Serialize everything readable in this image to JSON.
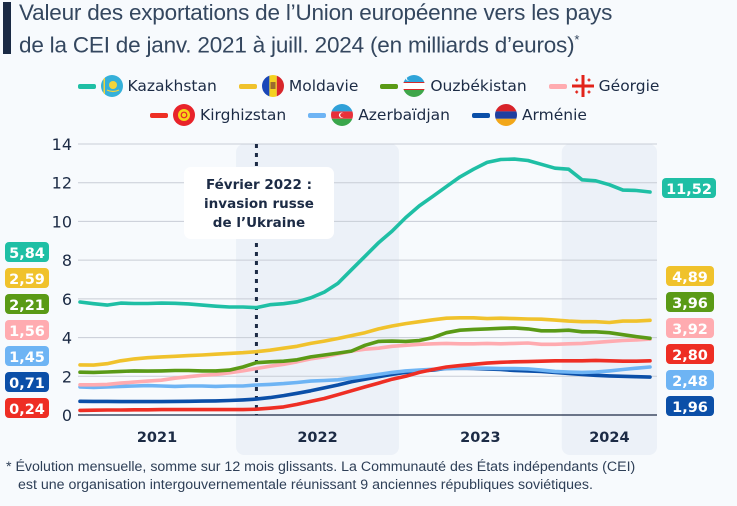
{
  "header": {
    "title_line1": "Valeur des exportations de l’Union européenne vers les pays",
    "title_line2": "de la CEI de janv. 2021 à juill. 2024 (en milliards d’euros)",
    "title_mark": "*"
  },
  "footnote": {
    "line1": "* Évolution mensuelle, somme sur 12 mois glissants. La Communauté des États indépendants (CEI)",
    "line2": "est une organisation intergouvernementale réunissant 9 anciennes républiques soviétiques."
  },
  "chart_data": {
    "type": "line",
    "title": "Valeur des exportations de l’Union européenne vers les pays de la CEI de janv. 2021 à juill. 2024 (en milliards d’euros)",
    "xlabel": "",
    "ylabel": "",
    "x_start": "2021-01",
    "x_end": "2024-07",
    "x_tick_labels": [
      "2021",
      "2022",
      "2023",
      "2024"
    ],
    "y_ticks": [
      0,
      2,
      4,
      6,
      8,
      10,
      12,
      14
    ],
    "ylim": [
      0,
      14
    ],
    "grid": true,
    "shaded_years": [
      "2022",
      "2024"
    ],
    "annotation": {
      "date": "2022-02",
      "text_lines": [
        "Février 2022 :",
        "invasion russe",
        "de l’Ukraine"
      ]
    },
    "legend_placement": "top",
    "series": [
      {
        "name": "Kazakhstan",
        "color": "#1fbfa5",
        "flag": "kazakhstan-flag-icon",
        "start_label": "5,84",
        "end_label": "11,52",
        "values": [
          5.84,
          5.75,
          5.68,
          5.78,
          5.76,
          5.76,
          5.78,
          5.77,
          5.74,
          5.68,
          5.62,
          5.58,
          5.58,
          5.55,
          5.7,
          5.75,
          5.85,
          6.05,
          6.35,
          6.8,
          7.5,
          8.2,
          8.9,
          9.5,
          10.2,
          10.8,
          11.3,
          11.8,
          12.3,
          12.7,
          13.05,
          13.2,
          13.22,
          13.15,
          12.95,
          12.75,
          12.7,
          12.15,
          12.1,
          11.9,
          11.62,
          11.6,
          11.52
        ]
      },
      {
        "name": "Moldavie",
        "color": "#f0c22c",
        "flag": "moldova-flag-icon",
        "start_label": "2,59",
        "end_label": "4,89",
        "values": [
          2.59,
          2.58,
          2.65,
          2.8,
          2.9,
          2.96,
          3.0,
          3.03,
          3.07,
          3.1,
          3.14,
          3.18,
          3.22,
          3.27,
          3.35,
          3.45,
          3.55,
          3.7,
          3.82,
          3.95,
          4.1,
          4.25,
          4.45,
          4.6,
          4.72,
          4.82,
          4.92,
          5.0,
          5.02,
          5.02,
          4.98,
          5.0,
          4.98,
          4.96,
          4.95,
          4.9,
          4.85,
          4.82,
          4.82,
          4.78,
          4.85,
          4.85,
          4.89
        ]
      },
      {
        "name": "Ouzbékistan",
        "color": "#5a9a16",
        "flag": "uzbekistan-flag-icon",
        "start_label": "2,21",
        "end_label": "3,96",
        "values": [
          2.21,
          2.2,
          2.22,
          2.25,
          2.28,
          2.27,
          2.28,
          2.3,
          2.3,
          2.28,
          2.28,
          2.32,
          2.48,
          2.7,
          2.75,
          2.78,
          2.85,
          3.0,
          3.1,
          3.2,
          3.3,
          3.6,
          3.8,
          3.82,
          3.8,
          3.85,
          4.0,
          4.25,
          4.38,
          4.42,
          4.45,
          4.48,
          4.5,
          4.45,
          4.35,
          4.35,
          4.38,
          4.3,
          4.3,
          4.25,
          4.15,
          4.05,
          3.96
        ]
      },
      {
        "name": "Géorgie",
        "color": "#ffabb0",
        "flag": "georgia-flag-icon",
        "start_label": "1,56",
        "end_label": "3,92",
        "values": [
          1.56,
          1.56,
          1.58,
          1.65,
          1.7,
          1.75,
          1.8,
          1.9,
          1.98,
          2.05,
          2.1,
          2.18,
          2.28,
          2.4,
          2.52,
          2.62,
          2.75,
          2.9,
          3.0,
          3.15,
          3.3,
          3.4,
          3.45,
          3.55,
          3.6,
          3.65,
          3.68,
          3.7,
          3.68,
          3.68,
          3.7,
          3.68,
          3.7,
          3.72,
          3.65,
          3.65,
          3.68,
          3.7,
          3.75,
          3.8,
          3.85,
          3.88,
          3.92
        ]
      },
      {
        "name": "Kirghizstan",
        "color": "#ee2e24",
        "flag": "kyrgyzstan-flag-icon",
        "start_label": "0,24",
        "end_label": "2,80",
        "values": [
          0.24,
          0.25,
          0.26,
          0.26,
          0.27,
          0.27,
          0.28,
          0.28,
          0.28,
          0.28,
          0.28,
          0.28,
          0.28,
          0.3,
          0.35,
          0.42,
          0.55,
          0.7,
          0.85,
          1.05,
          1.25,
          1.45,
          1.65,
          1.85,
          2.0,
          2.2,
          2.35,
          2.48,
          2.55,
          2.62,
          2.68,
          2.72,
          2.75,
          2.76,
          2.78,
          2.8,
          2.8,
          2.8,
          2.82,
          2.8,
          2.78,
          2.78,
          2.8
        ]
      },
      {
        "name": "Azerbaïdjan",
        "color": "#6eb4f4",
        "flag": "azerbaijan-flag-icon",
        "start_label": "1,45",
        "end_label": "2,48",
        "values": [
          1.45,
          1.42,
          1.45,
          1.48,
          1.5,
          1.52,
          1.5,
          1.48,
          1.5,
          1.5,
          1.48,
          1.5,
          1.5,
          1.55,
          1.58,
          1.62,
          1.68,
          1.75,
          1.78,
          1.82,
          1.9,
          2.0,
          2.1,
          2.2,
          2.28,
          2.32,
          2.36,
          2.4,
          2.42,
          2.42,
          2.42,
          2.4,
          2.4,
          2.38,
          2.32,
          2.25,
          2.22,
          2.2,
          2.22,
          2.28,
          2.35,
          2.42,
          2.48
        ]
      },
      {
        "name": "Arménie",
        "color": "#0b4fa8",
        "flag": "armenia-flag-icon",
        "start_label": "0,71",
        "end_label": "1,96",
        "values": [
          0.71,
          0.7,
          0.7,
          0.69,
          0.69,
          0.69,
          0.69,
          0.7,
          0.71,
          0.72,
          0.73,
          0.75,
          0.78,
          0.82,
          0.9,
          1.0,
          1.12,
          1.25,
          1.4,
          1.55,
          1.72,
          1.85,
          1.98,
          2.1,
          2.2,
          2.28,
          2.32,
          2.4,
          2.42,
          2.4,
          2.38,
          2.35,
          2.3,
          2.28,
          2.25,
          2.2,
          2.15,
          2.1,
          2.05,
          2.02,
          2.0,
          1.98,
          1.96
        ]
      }
    ]
  }
}
